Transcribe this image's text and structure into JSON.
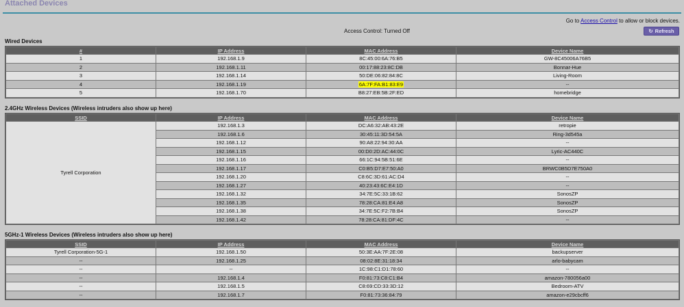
{
  "page_title": "Attached Devices",
  "access_control_hint": {
    "prefix": "Go to ",
    "link": "Access Control",
    "suffix": " to allow or block devices."
  },
  "access_control_status": "Access Control: Turned Off",
  "refresh_label": "Refresh",
  "highlight_color": "#ffff00",
  "wired": {
    "title": "Wired Devices",
    "headers": [
      "#",
      "IP Address",
      "MAC Address",
      "Device Name"
    ],
    "rows": [
      [
        "1",
        "192.168.1.9",
        "8C:45:00:6A:76:B5",
        "GW-8C45006A76B5"
      ],
      [
        "2",
        "192.168.1.11",
        "00:17:88:23:8C:DB",
        "Bonnar-Hue"
      ],
      [
        "3",
        "192.168.1.14",
        "50:DE:06:82:84:8C",
        "Living-Room"
      ],
      [
        "4",
        "192.168.1.19",
        "6A:7F:FA:B1:83:E9",
        "--"
      ],
      [
        "5",
        "192.168.1.70",
        "B8:27:EB:5B:2F:ED",
        "homebridge"
      ]
    ]
  },
  "wifi24": {
    "title": "2.4GHz Wireless Devices (Wireless intruders also show up here)",
    "headers": [
      "SSID",
      "IP Address",
      "MAC Address",
      "Device Name"
    ],
    "ssid": "Tyrell Corporation",
    "rows": [
      [
        "192.168.1.3",
        "DC:A6:32:AB:43:2E",
        "retropie"
      ],
      [
        "192.168.1.6",
        "30:45:11:3D:54:5A",
        "Ring-3d545a"
      ],
      [
        "192.168.1.12",
        "90:A8:22:94:30:AA",
        "--"
      ],
      [
        "192.168.1.15",
        "00:D0:2D:AC:44:0C",
        "Lyric-AC440C"
      ],
      [
        "192.168.1.16",
        "66:1C:94:5B:51:6E",
        "--"
      ],
      [
        "192.168.1.17",
        "C0:B5:D7:E7:50:A0",
        "BRWC0B5D7E750A0"
      ],
      [
        "192.168.1.20",
        "C8:6C:3D:61:AC:D4",
        "--"
      ],
      [
        "192.168.1.27",
        "40:23:43:6C:E4:1D",
        "--"
      ],
      [
        "192.168.1.32",
        "34:7E:5C:33:1B:62",
        "SonosZP"
      ],
      [
        "192.168.1.35",
        "78:28:CA:81:E4:A8",
        "SonosZP"
      ],
      [
        "192.168.1.38",
        "34:7E:5C:F2:7B:B4",
        "SonosZP"
      ],
      [
        "192.168.1.42",
        "78:28:CA:81:DF:4C",
        "--"
      ]
    ]
  },
  "wifi5": {
    "title": "5GHz-1 Wireless Devices (Wireless intruders also show up here)",
    "headers": [
      "SSID",
      "IP Address",
      "MAC Address",
      "Device Name"
    ],
    "rows": [
      [
        "Tyrell Corporation-5G-1",
        "192.168.1.50",
        "50:3E:AA:7F:2E:08",
        "backupserver"
      ],
      [
        "--",
        "192.168.1.25",
        "08:02:8E:31:18:34",
        "arlo-babycam"
      ],
      [
        "--",
        "--",
        "1C:98:C1:D1:78:60",
        "--"
      ],
      [
        "--",
        "192.168.1.4",
        "F0:81:73:C8:C1:B4",
        "amazon-780056a00"
      ],
      [
        "--",
        "192.168.1.5",
        "C8:69:CD:33:3D:12",
        "Bedroom-ATV"
      ],
      [
        "--",
        "192.168.1.7",
        "F0:81:73:36:84:79",
        "amazon-e29cbcff6"
      ]
    ]
  }
}
